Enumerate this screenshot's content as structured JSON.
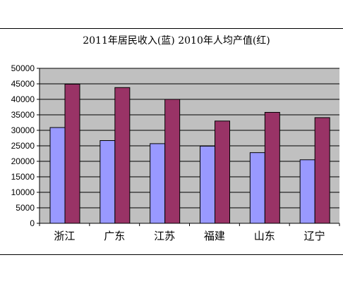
{
  "chart_data": {
    "type": "bar",
    "title": "2011年居民收入(蓝) 2010年人均产值(红)",
    "categories": [
      "浙江",
      "广东",
      "江苏",
      "福建",
      "山东",
      "辽宁"
    ],
    "series": [
      {
        "values": [
          30900,
          26700,
          25700,
          24900,
          22800,
          20500
        ],
        "color": "#9999ff"
      },
      {
        "values": [
          44900,
          43800,
          40000,
          33000,
          35800,
          34100
        ],
        "color": "#993366"
      }
    ],
    "ylim": [
      0,
      50000
    ],
    "yticks": [
      "0",
      "5000",
      "10000",
      "15000",
      "20000",
      "25000",
      "30000",
      "35000",
      "40000",
      "45000",
      "50000"
    ],
    "plot_background": "#c0c0c0",
    "grid": true,
    "xlabel": "",
    "ylabel": ""
  }
}
